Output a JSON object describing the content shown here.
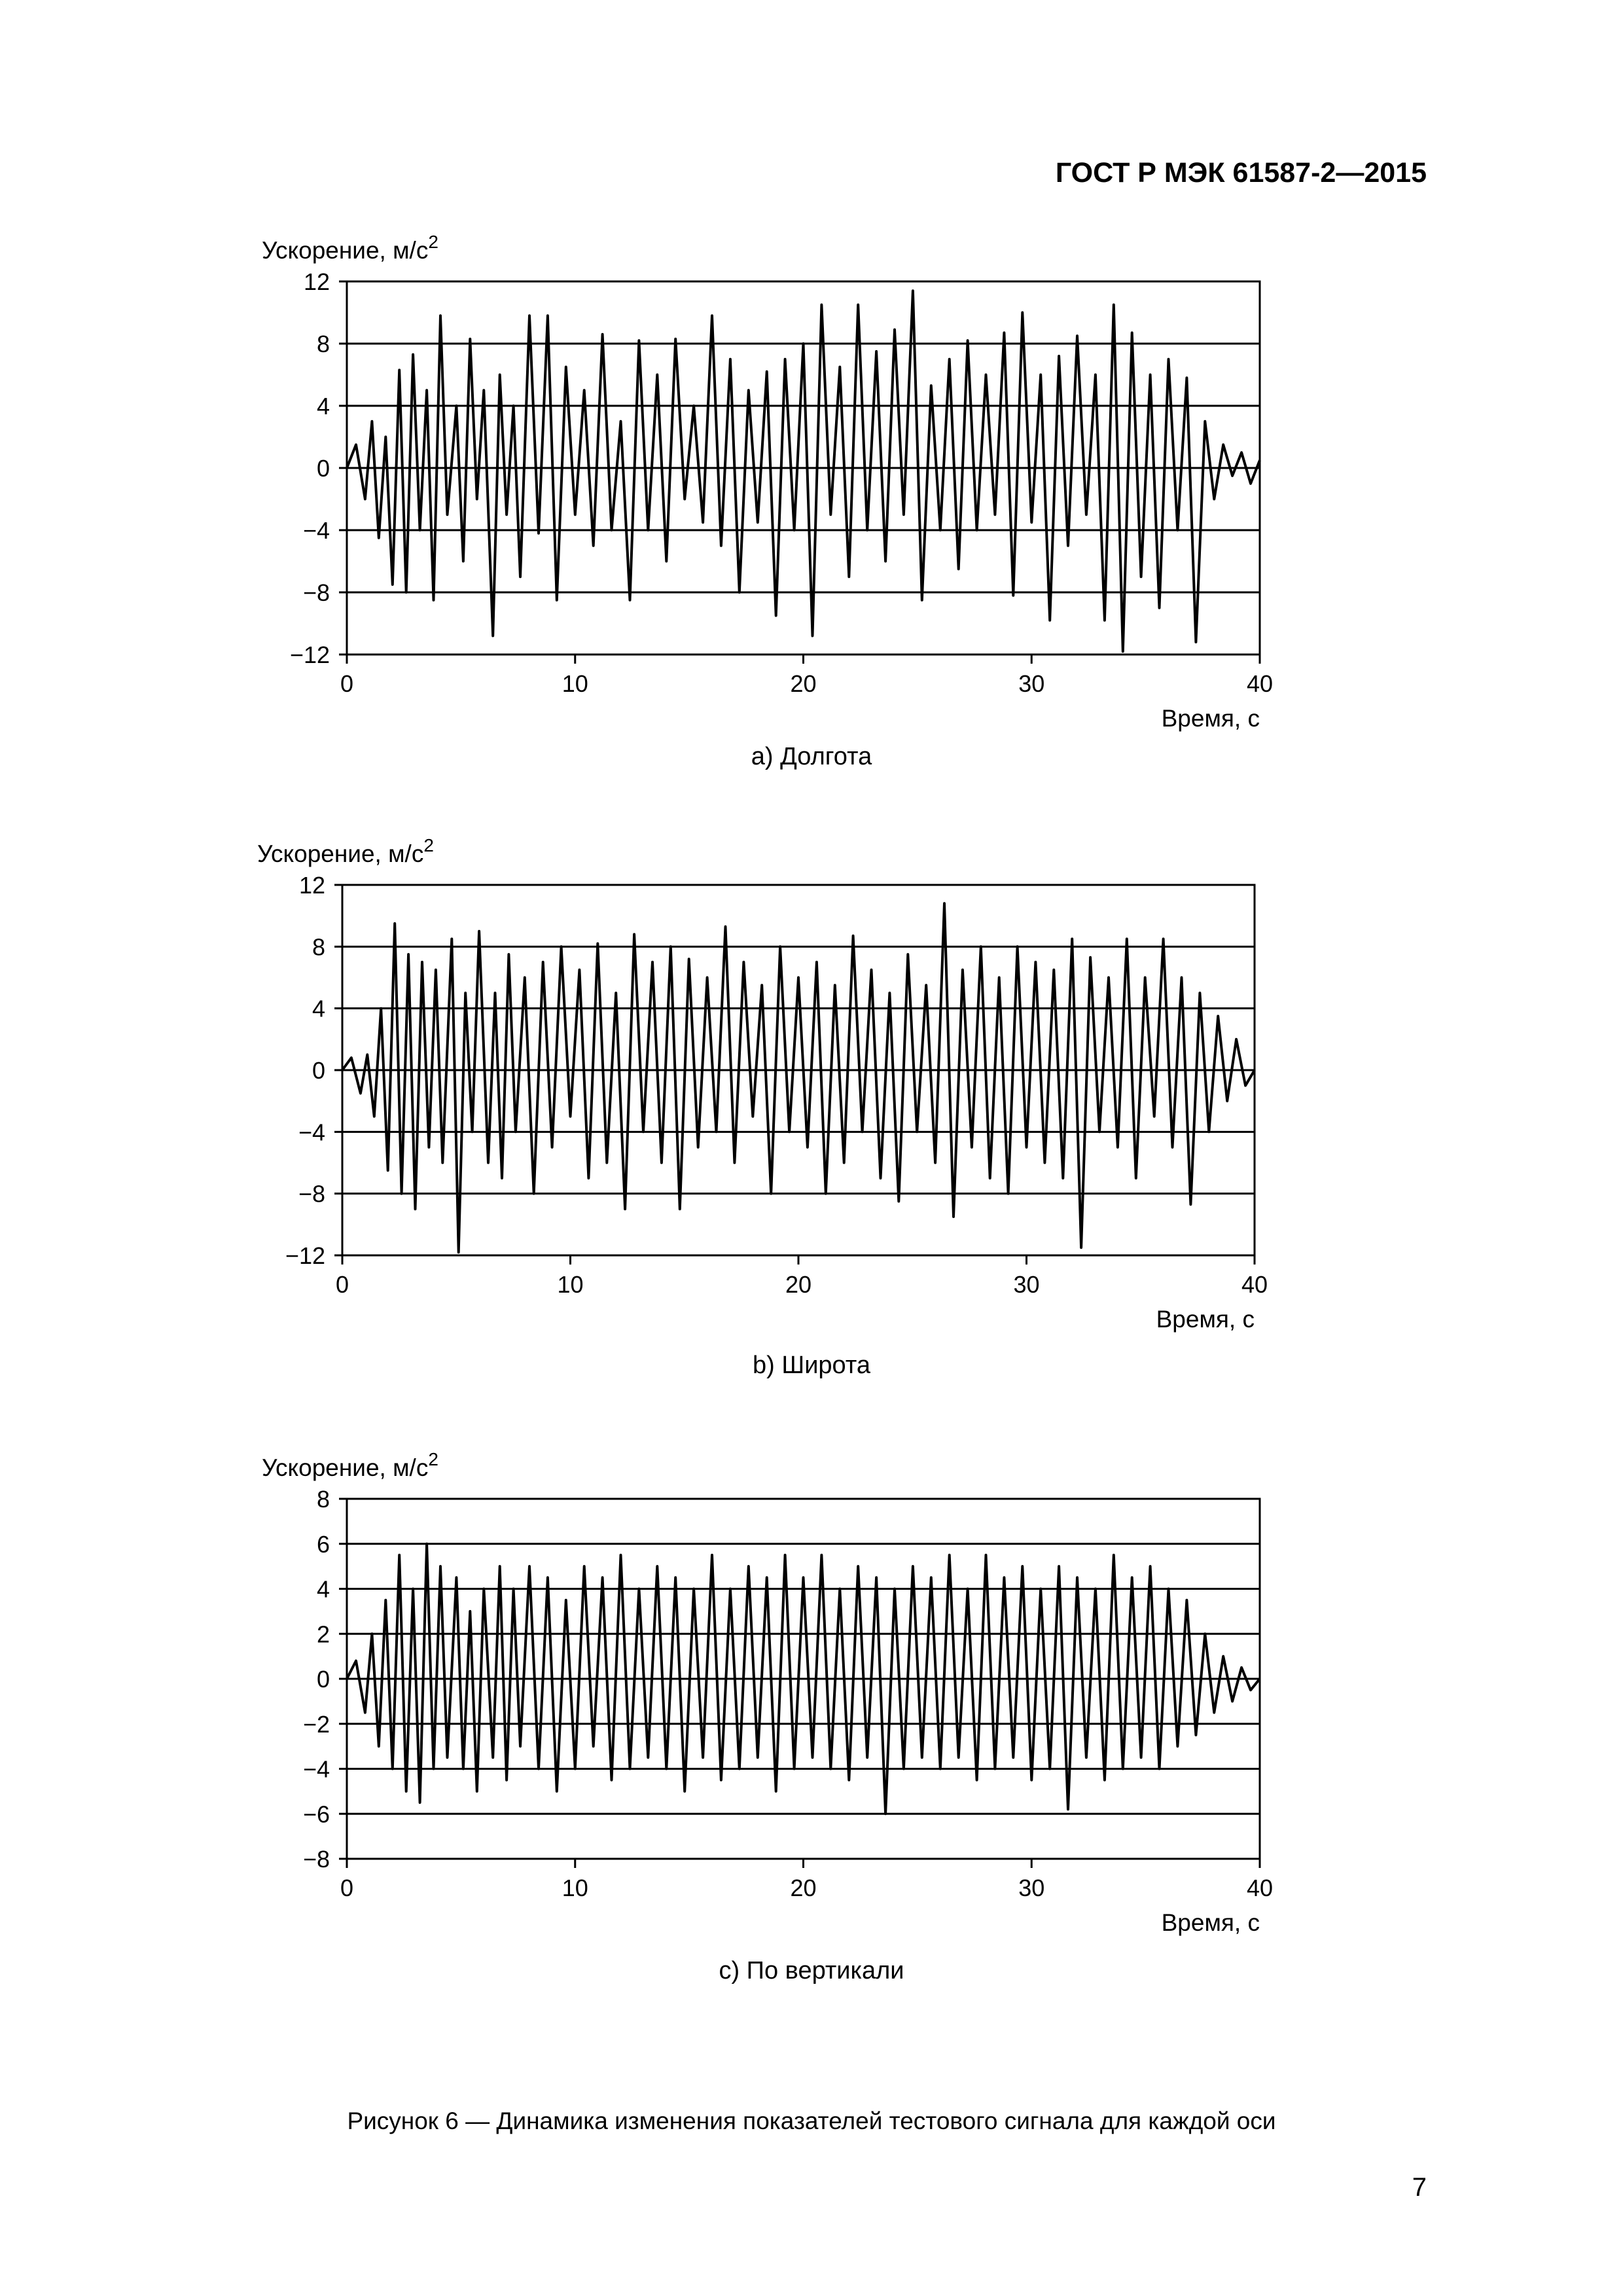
{
  "header": {
    "standard": "ГОСТ Р МЭК 61587-2—2015"
  },
  "figure_caption": "Рисунок 6 — Динамика изменения показателей тестового сигнала для каждой оси",
  "page_number": "7",
  "colors": {
    "line": "#000000",
    "grid": "#000000",
    "background": "#ffffff"
  },
  "chart_data": [
    {
      "type": "line",
      "caption": "а) Долгота",
      "ylabel": "Ускорение, м/с",
      "ylabel_sup": "2",
      "xlabel": "Время, с",
      "xlim": [
        0,
        40
      ],
      "ylim": [
        -12,
        12
      ],
      "xticks": [
        0,
        10,
        20,
        30,
        40
      ],
      "yticks": [
        -12,
        -8,
        -4,
        0,
        4,
        8,
        12
      ],
      "ytick_labels": [
        "−12",
        "−8",
        "−4",
        "0",
        "4",
        "8",
        "12"
      ],
      "grid": "horizontal",
      "series": [
        {
          "x": [
            0.0,
            0.4,
            0.8,
            1.1,
            1.4,
            1.7,
            2.0,
            2.3,
            2.6,
            2.9,
            3.2,
            3.5,
            3.8,
            4.1,
            4.4,
            4.8,
            5.1,
            5.4,
            5.7,
            6.0,
            6.4,
            6.7,
            7.0,
            7.3,
            7.6,
            8.0,
            8.4,
            8.8,
            9.2,
            9.6,
            10.0,
            10.4,
            10.8,
            11.2,
            11.6,
            12.0,
            12.4,
            12.8,
            13.2,
            13.6,
            14.0,
            14.4,
            14.8,
            15.2,
            15.6,
            16.0,
            16.4,
            16.8,
            17.2,
            17.6,
            18.0,
            18.4,
            18.8,
            19.2,
            19.6,
            20.0,
            20.4,
            20.8,
            21.2,
            21.6,
            22.0,
            22.4,
            22.8,
            23.2,
            23.6,
            24.0,
            24.4,
            24.8,
            25.2,
            25.6,
            26.0,
            26.4,
            26.8,
            27.2,
            27.6,
            28.0,
            28.4,
            28.8,
            29.2,
            29.6,
            30.0,
            30.4,
            30.8,
            31.2,
            31.6,
            32.0,
            32.4,
            32.8,
            33.2,
            33.6,
            34.0,
            34.4,
            34.8,
            35.2,
            35.6,
            36.0,
            36.4,
            36.8,
            37.2,
            37.6,
            38.0,
            38.4,
            38.8,
            39.2,
            39.6,
            40.0
          ],
          "y": [
            0,
            1.5,
            -2,
            3,
            -4.5,
            2,
            -7.5,
            6.3,
            -8,
            7.3,
            -4,
            5,
            -8.5,
            9.8,
            -3,
            4,
            -6,
            8.3,
            -2,
            5,
            -10.8,
            6,
            -3,
            4,
            -7,
            9.8,
            -4.2,
            9.8,
            -8.5,
            6.5,
            -3,
            5,
            -5,
            8.6,
            -4,
            3,
            -8.5,
            8.2,
            -4,
            6,
            -6,
            8.3,
            -2,
            4,
            -3.5,
            9.8,
            -5,
            7,
            -8,
            5,
            -3.5,
            6.2,
            -9.5,
            7,
            -4,
            8,
            -10.8,
            10.5,
            -3,
            6.5,
            -7,
            10.5,
            -4,
            7.5,
            -6,
            8.9,
            -3,
            11.4,
            -8.5,
            5.3,
            -4,
            7,
            -6.5,
            8.2,
            -4,
            6,
            -3,
            8.7,
            -8.2,
            10,
            -3.5,
            6,
            -9.8,
            7.2,
            -5,
            8.5,
            -3,
            6,
            -9.8,
            10.5,
            -11.8,
            8.7,
            -7,
            6,
            -9,
            7,
            -4,
            5.8,
            -11.2,
            3,
            -2,
            1.5,
            -0.5,
            1,
            -1,
            0.5
          ]
        }
      ]
    },
    {
      "type": "line",
      "caption": "b) Широта",
      "ylabel": "Ускорение, м/с",
      "ylabel_sup": "2",
      "xlabel": "Время, с",
      "xlim": [
        0,
        40
      ],
      "ylim": [
        -12,
        12
      ],
      "xticks": [
        0,
        10,
        20,
        30,
        40
      ],
      "yticks": [
        -12,
        -8,
        -4,
        0,
        4,
        8,
        12
      ],
      "ytick_labels": [
        "−12",
        "−8",
        "−4",
        "0",
        "4",
        "8",
        "12"
      ],
      "grid": "horizontal",
      "series": [
        {
          "x": [
            0.0,
            0.4,
            0.8,
            1.1,
            1.4,
            1.7,
            2.0,
            2.3,
            2.6,
            2.9,
            3.2,
            3.5,
            3.8,
            4.1,
            4.4,
            4.8,
            5.1,
            5.4,
            5.7,
            6.0,
            6.4,
            6.7,
            7.0,
            7.3,
            7.6,
            8.0,
            8.4,
            8.8,
            9.2,
            9.6,
            10.0,
            10.4,
            10.8,
            11.2,
            11.6,
            12.0,
            12.4,
            12.8,
            13.2,
            13.6,
            14.0,
            14.4,
            14.8,
            15.2,
            15.6,
            16.0,
            16.4,
            16.8,
            17.2,
            17.6,
            18.0,
            18.4,
            18.8,
            19.2,
            19.6,
            20.0,
            20.4,
            20.8,
            21.2,
            21.6,
            22.0,
            22.4,
            22.8,
            23.2,
            23.6,
            24.0,
            24.4,
            24.8,
            25.2,
            25.6,
            26.0,
            26.4,
            26.8,
            27.2,
            27.6,
            28.0,
            28.4,
            28.8,
            29.2,
            29.6,
            30.0,
            30.4,
            30.8,
            31.2,
            31.6,
            32.0,
            32.4,
            32.8,
            33.2,
            33.6,
            34.0,
            34.4,
            34.8,
            35.2,
            35.6,
            36.0,
            36.4,
            36.8,
            37.2,
            37.6,
            38.0,
            38.4,
            38.8,
            39.2,
            39.6,
            40.0
          ],
          "y": [
            0,
            0.8,
            -1.5,
            1,
            -3,
            4,
            -6.5,
            9.5,
            -8,
            7.5,
            -9,
            7,
            -5,
            6.5,
            -6,
            8.5,
            -11.8,
            5,
            -4,
            9,
            -6,
            5,
            -7,
            7.5,
            -4,
            6,
            -8,
            7,
            -5,
            8,
            -3,
            6.5,
            -7,
            8.2,
            -6,
            5,
            -9,
            8.8,
            -4,
            7,
            -6,
            8,
            -9,
            7.2,
            -5,
            6,
            -4,
            9.3,
            -6,
            7,
            -3,
            5.5,
            -8,
            8,
            -4,
            6,
            -5,
            7,
            -8,
            5.5,
            -6,
            8.7,
            -4,
            6.5,
            -7,
            5,
            -8.5,
            7.5,
            -4,
            5.5,
            -6,
            10.8,
            -9.5,
            6.5,
            -5,
            8,
            -7,
            6,
            -8,
            8,
            -5,
            7,
            -6,
            6.5,
            -7,
            8.5,
            -11.5,
            7.3,
            -4,
            6,
            -5,
            8.5,
            -7,
            6,
            -3,
            8.5,
            -5,
            6,
            -8.7,
            5,
            -4,
            3.5,
            -2,
            2,
            -1,
            0
          ]
        }
      ]
    },
    {
      "type": "line",
      "caption": "c) По вертикали",
      "ylabel": "Ускорение, м/с",
      "ylabel_sup": "2",
      "xlabel": "Время, с",
      "xlim": [
        0,
        40
      ],
      "ylim": [
        -8,
        8
      ],
      "xticks": [
        0,
        10,
        20,
        30,
        40
      ],
      "yticks": [
        -8,
        -6,
        -4,
        -2,
        0,
        2,
        4,
        6,
        8
      ],
      "ytick_labels": [
        "−8",
        "−6",
        "−4",
        "−2",
        "0",
        "2",
        "4",
        "6",
        "8"
      ],
      "grid": "horizontal",
      "series": [
        {
          "x": [
            0.0,
            0.4,
            0.8,
            1.1,
            1.4,
            1.7,
            2.0,
            2.3,
            2.6,
            2.9,
            3.2,
            3.5,
            3.8,
            4.1,
            4.4,
            4.8,
            5.1,
            5.4,
            5.7,
            6.0,
            6.4,
            6.7,
            7.0,
            7.3,
            7.6,
            8.0,
            8.4,
            8.8,
            9.2,
            9.6,
            10.0,
            10.4,
            10.8,
            11.2,
            11.6,
            12.0,
            12.4,
            12.8,
            13.2,
            13.6,
            14.0,
            14.4,
            14.8,
            15.2,
            15.6,
            16.0,
            16.4,
            16.8,
            17.2,
            17.6,
            18.0,
            18.4,
            18.8,
            19.2,
            19.6,
            20.0,
            20.4,
            20.8,
            21.2,
            21.6,
            22.0,
            22.4,
            22.8,
            23.2,
            23.6,
            24.0,
            24.4,
            24.8,
            25.2,
            25.6,
            26.0,
            26.4,
            26.8,
            27.2,
            27.6,
            28.0,
            28.4,
            28.8,
            29.2,
            29.6,
            30.0,
            30.4,
            30.8,
            31.2,
            31.6,
            32.0,
            32.4,
            32.8,
            33.2,
            33.6,
            34.0,
            34.4,
            34.8,
            35.2,
            35.6,
            36.0,
            36.4,
            36.8,
            37.2,
            37.6,
            38.0,
            38.4,
            38.8,
            39.2,
            39.6,
            40.0
          ],
          "y": [
            0,
            0.8,
            -1.5,
            2,
            -3,
            3.5,
            -4,
            5.5,
            -5,
            4,
            -5.5,
            6,
            -4,
            5,
            -3.5,
            4.5,
            -4,
            3,
            -5,
            4,
            -3.5,
            5,
            -4.5,
            4,
            -3,
            5,
            -4,
            4.5,
            -5,
            3.5,
            -4,
            5,
            -3,
            4.5,
            -4.5,
            5.5,
            -4,
            4,
            -3.5,
            5,
            -4,
            4.5,
            -5,
            4,
            -3.5,
            5.5,
            -4.5,
            4,
            -4,
            5,
            -3.5,
            4.5,
            -5,
            5.5,
            -4,
            4.5,
            -3.5,
            5.5,
            -4,
            4,
            -4.5,
            5,
            -3.5,
            4.5,
            -6,
            4,
            -4,
            5,
            -3.5,
            4.5,
            -4,
            5.5,
            -3.5,
            4,
            -4.5,
            5.5,
            -4,
            4.5,
            -3.5,
            5,
            -4.5,
            4,
            -4,
            5,
            -5.8,
            4.5,
            -3.5,
            4,
            -4.5,
            5.5,
            -4,
            4.5,
            -3.5,
            5,
            -4,
            4,
            -3,
            3.5,
            -2.5,
            2,
            -1.5,
            1,
            -1,
            0.5,
            -0.5,
            0
          ]
        }
      ]
    }
  ]
}
